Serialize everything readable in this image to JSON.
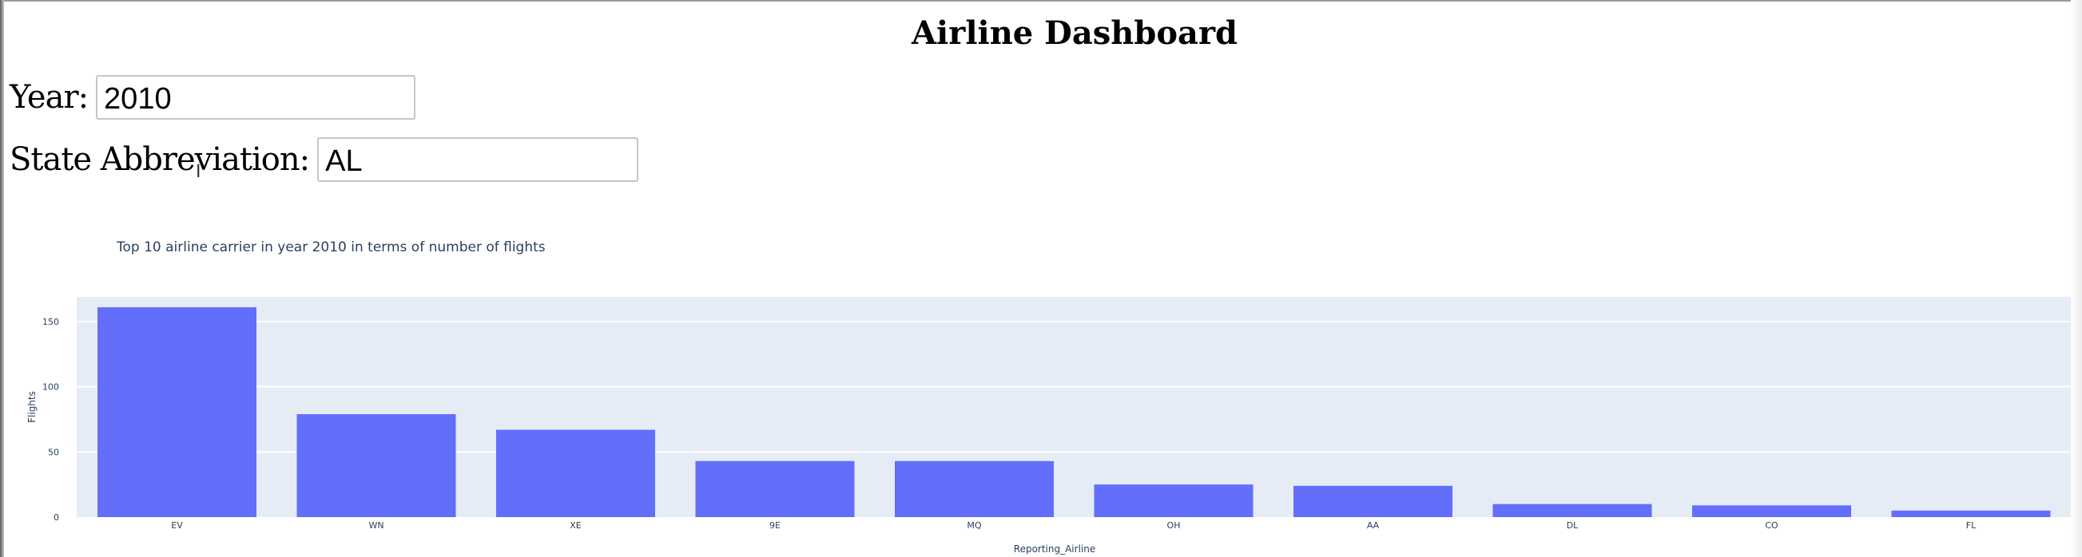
{
  "page": {
    "title": "Airline Dashboard"
  },
  "inputs": {
    "year_label": "Year:",
    "year_value": "2010",
    "state_label": "State Abbreviation:",
    "state_value": "AL"
  },
  "chart_data": {
    "type": "bar",
    "title": "Top 10 airline carrier in year 2010 in terms of number of flights",
    "xlabel": "Reporting_Airline",
    "ylabel": "Flights",
    "categories": [
      "EV",
      "WN",
      "XE",
      "9E",
      "MQ",
      "OH",
      "AA",
      "DL",
      "CO",
      "FL"
    ],
    "values": [
      161,
      79,
      67,
      43,
      43,
      25,
      24,
      10,
      9,
      5
    ],
    "ylim": [
      0,
      169
    ],
    "yticks": [
      0,
      50,
      100,
      150
    ],
    "grid": true,
    "colors": {
      "bar": "#636efa",
      "plot_bg": "#e5ecf6",
      "grid": "#ffffff",
      "text": "#2a3f5f"
    }
  }
}
